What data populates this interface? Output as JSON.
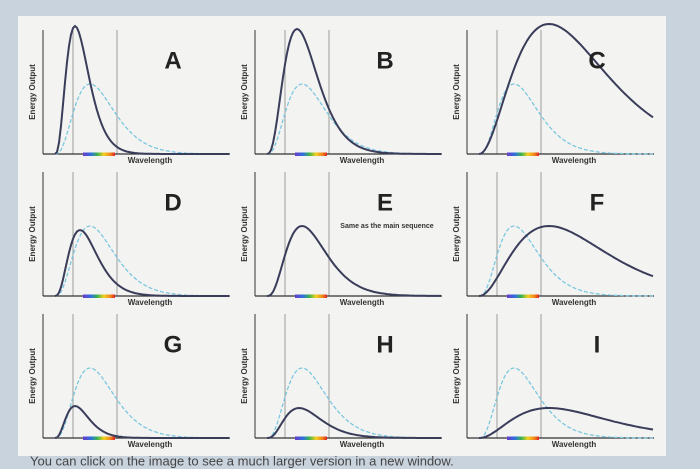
{
  "panels": [
    {
      "letter": "A",
      "y_label": "Energy Output",
      "x_label": "Wavelength"
    },
    {
      "letter": "B",
      "y_label": "Energy Output",
      "x_label": "Wavelength"
    },
    {
      "letter": "C",
      "y_label": "Energy Output",
      "x_label": "Wavelength"
    },
    {
      "letter": "D",
      "y_label": "Energy Output",
      "x_label": "Wavelength"
    },
    {
      "letter": "E",
      "y_label": "Energy Output",
      "x_label": "Wavelength",
      "note": "Same as the main sequence"
    },
    {
      "letter": "F",
      "y_label": "Energy Output",
      "x_label": "Wavelength"
    },
    {
      "letter": "G",
      "y_label": "Energy Output",
      "x_label": "Wavelength"
    },
    {
      "letter": "H",
      "y_label": "Energy Output",
      "x_label": "Wavelength"
    },
    {
      "letter": "I",
      "y_label": "Energy Output",
      "x_label": "Wavelength"
    }
  ],
  "footer": "You can click on the image to see a much larger version in a new window."
}
